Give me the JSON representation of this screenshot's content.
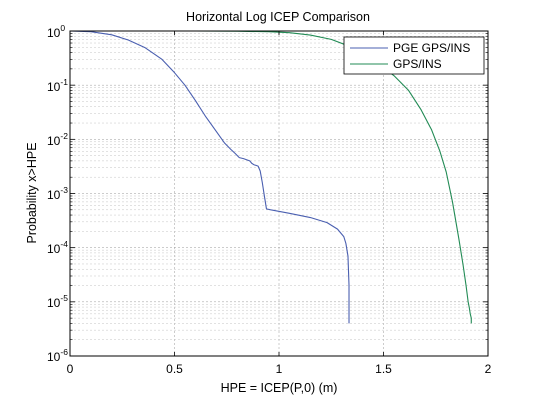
{
  "chart_data": {
    "type": "line",
    "title": "Horizontal Log ICEP Comparison",
    "xlabel": "HPE = ICEP(P,0) (m)",
    "ylabel": "Probability x>HPE",
    "xlim": [
      0,
      2
    ],
    "ylim": [
      1e-06,
      1
    ],
    "yscale": "log",
    "grid": true,
    "legend_position": "top-right",
    "xticks": [
      0,
      0.5,
      1,
      1.5,
      2
    ],
    "xtick_labels": [
      "0",
      "0.5",
      "1",
      "1.5",
      "2"
    ],
    "yticks": [
      {
        "base": "10",
        "exp": "0",
        "value": 1
      },
      {
        "base": "10",
        "exp": "-1",
        "value": 0.1
      },
      {
        "base": "10",
        "exp": "-2",
        "value": 0.01
      },
      {
        "base": "10",
        "exp": "-3",
        "value": 0.001
      },
      {
        "base": "10",
        "exp": "-4",
        "value": 0.0001
      },
      {
        "base": "10",
        "exp": "-5",
        "value": 1e-05
      },
      {
        "base": "10",
        "exp": "-6",
        "value": 1e-06
      }
    ],
    "series": [
      {
        "name": "PGE GPS/INS",
        "color": "#4a5fb0",
        "x": [
          0.0,
          0.1,
          0.2,
          0.28,
          0.36,
          0.44,
          0.5,
          0.55,
          0.6,
          0.65,
          0.7,
          0.74,
          0.77,
          0.79,
          0.81,
          0.83,
          0.86,
          0.87,
          0.88,
          0.89,
          0.9,
          0.91,
          0.92,
          0.93,
          0.94,
          0.96,
          1.05,
          1.15,
          1.23,
          1.28,
          1.31,
          1.32,
          1.33,
          1.335,
          1.335
        ],
        "y": [
          1.0,
          0.97,
          0.85,
          0.68,
          0.49,
          0.3,
          0.17,
          0.1,
          0.052,
          0.026,
          0.014,
          0.0085,
          0.0065,
          0.0055,
          0.0046,
          0.0044,
          0.004,
          0.0036,
          0.0034,
          0.0033,
          0.0032,
          0.0026,
          0.0016,
          0.0009,
          0.00052,
          0.0005,
          0.00043,
          0.00036,
          0.00029,
          0.00022,
          0.00016,
          0.00012,
          7e-05,
          2e-05,
          4e-06
        ]
      },
      {
        "name": "GPS/INS",
        "color": "#228b55",
        "x": [
          0.0,
          0.6,
          0.8,
          0.95,
          1.05,
          1.15,
          1.25,
          1.35,
          1.45,
          1.55,
          1.62,
          1.68,
          1.73,
          1.77,
          1.8,
          1.83,
          1.86,
          1.88,
          1.895,
          1.905,
          1.91,
          1.915,
          1.92,
          1.92
        ],
        "y": [
          1.0,
          1.0,
          0.99,
          0.97,
          0.93,
          0.84,
          0.7,
          0.5,
          0.3,
          0.15,
          0.08,
          0.035,
          0.015,
          0.006,
          0.0025,
          0.0007,
          0.00015,
          5e-05,
          2e-05,
          1e-05,
          8e-06,
          6e-06,
          5e-06,
          4e-06
        ]
      }
    ]
  }
}
